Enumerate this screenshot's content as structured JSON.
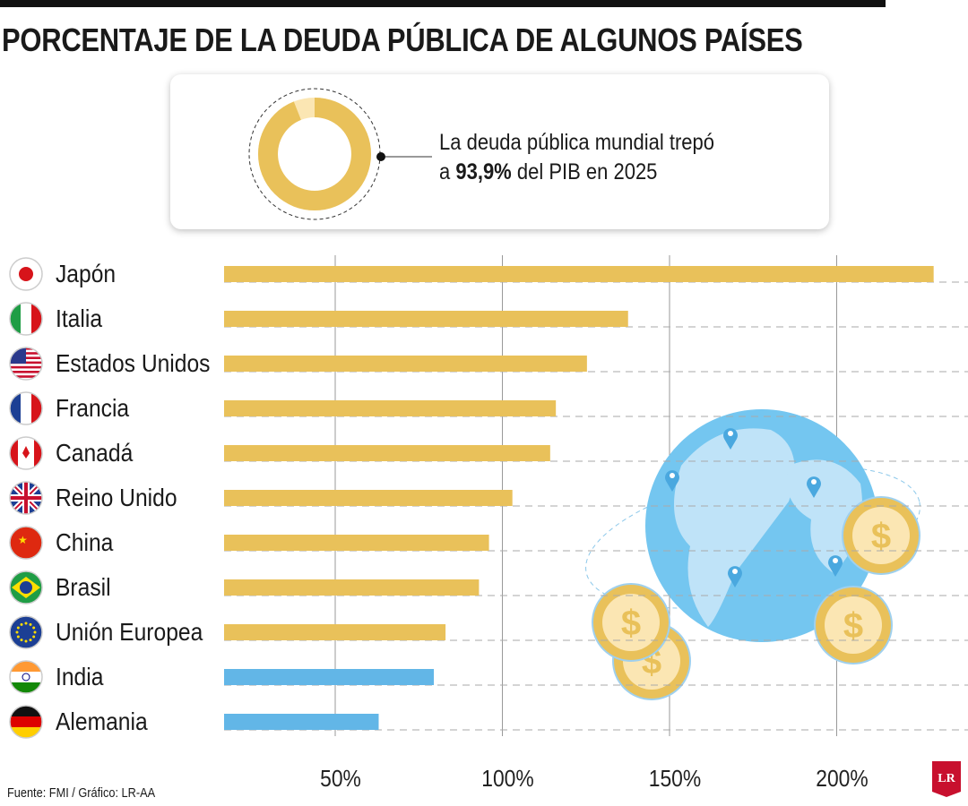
{
  "title": "PORCENTAJE DE LA DEUDA PÚBLICA DE ALGUNOS PAÍSES",
  "highlight": {
    "line1": "La deuda pública mundial trepó",
    "prefix": "a ",
    "value": "93,9%",
    "suffix": " del PIB en 2025",
    "donut_fraction": 0.939,
    "donut_color": "#e9c15a",
    "donut_rest_color": "#fbe6b3"
  },
  "source": "Fuente: FMI / Gráfico: LR-AA",
  "logo": "LR",
  "chart_data": {
    "type": "bar",
    "orientation": "horizontal",
    "categories": [
      "Japón",
      "Italia",
      "Estados Unidos",
      "Francia",
      "Canadá",
      "Reino Unido",
      "China",
      "Brasil",
      "Unión Europea",
      "India",
      "Alemania"
    ],
    "values": [
      229,
      137.6,
      125.3,
      116,
      114.3,
      103,
      96,
      93,
      83,
      79.5,
      63
    ],
    "bar_colors": [
      "#e9c15a",
      "#e9c15a",
      "#e9c15a",
      "#e9c15a",
      "#e9c15a",
      "#e9c15a",
      "#e9c15a",
      "#e9c15a",
      "#e9c15a",
      "#62b6e7",
      "#62b6e7"
    ],
    "flag_icons": [
      "japan-flag",
      "italy-flag",
      "usa-flag",
      "france-flag",
      "canada-flag",
      "uk-flag",
      "china-flag",
      "brazil-flag",
      "eu-flag",
      "india-flag",
      "germany-flag"
    ],
    "xticks": [
      50,
      100,
      150,
      200
    ],
    "xtick_labels": [
      "50%",
      "100%",
      "150%",
      "200%"
    ],
    "xlim": [
      17,
      232
    ],
    "grid": "vertical solid, horizontal dashed",
    "title": "",
    "xlabel": "",
    "ylabel": ""
  }
}
